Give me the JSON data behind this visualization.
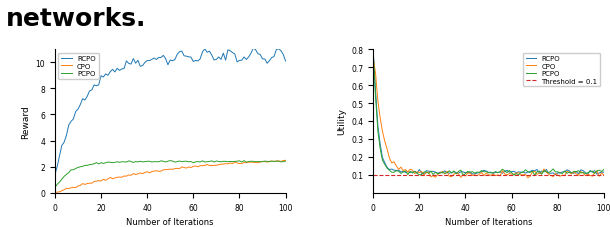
{
  "fig_width": 6.1,
  "fig_height": 2.28,
  "dpi": 100,
  "left_ylabel": "Reward",
  "right_ylabel": "Utility",
  "xlabel": "Number of Iterations",
  "legend_labels": [
    "RCPO",
    "CPO",
    "PCPO"
  ],
  "threshold_label": "Threshold = 0.1",
  "threshold_value": 0.1,
  "line_colors": [
    "#1f77b4",
    "#ff7f0e",
    "#2ca02c"
  ],
  "threshold_color": "#d62728",
  "left_ylim": [
    0,
    11
  ],
  "right_ylim": [
    0,
    0.8
  ],
  "left_yticks": [
    0,
    2,
    4,
    6,
    8,
    10
  ],
  "right_yticks": [
    0.1,
    0.2,
    0.3,
    0.4,
    0.5,
    0.6,
    0.7,
    0.8
  ],
  "xticks": [
    0,
    20,
    40,
    60,
    80,
    100
  ],
  "n_points": 100,
  "seed": 42,
  "header_text": "networks.",
  "header_fontsize": 18
}
